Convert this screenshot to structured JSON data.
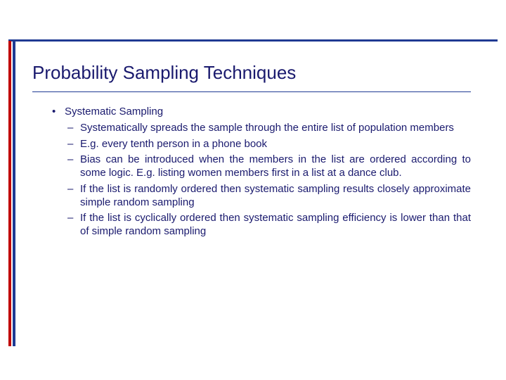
{
  "colors": {
    "title_color": "#1a1a6e",
    "body_color": "#1a1a6e",
    "accent_red": "#c00000",
    "accent_blue": "#1f3a93",
    "background": "#ffffff"
  },
  "typography": {
    "title_fontsize": 26,
    "body_fontsize": 15,
    "font_family": "Verdana"
  },
  "slide": {
    "title": "Probability Sampling Techniques",
    "main_bullet": "Systematic Sampling",
    "sub_bullets": [
      "Systematically spreads the sample through the entire list of population members",
      "E.g. every tenth person in a phone book",
      "Bias can be introduced when the members in the list are ordered according to some logic. E.g. listing women members first in a list at a dance club.",
      "If the list is randomly ordered then systematic sampling results closely approximate simple random sampling",
      "If the list is cyclically ordered then systematic sampling efficiency is lower than that of simple random sampling"
    ]
  }
}
